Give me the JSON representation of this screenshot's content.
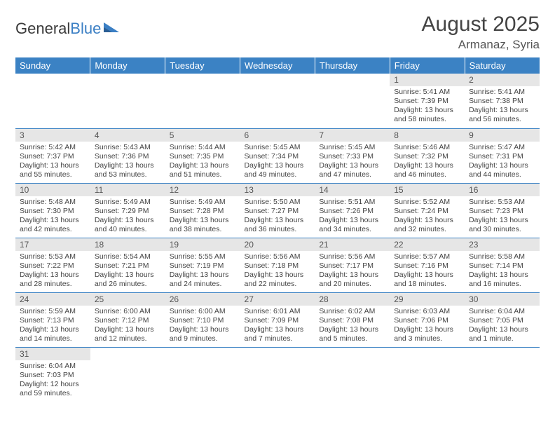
{
  "logo": {
    "part1": "General",
    "part2": "Blue"
  },
  "title": {
    "month": "August 2025",
    "location": "Armanaz, Syria"
  },
  "colors": {
    "header_bg": "#3b82c4",
    "header_text": "#ffffff",
    "daynum_bg": "#e6e6e6",
    "rule": "#3b82c4",
    "text": "#444444",
    "logo_blue": "#3b7fc4"
  },
  "columns": [
    "Sunday",
    "Monday",
    "Tuesday",
    "Wednesday",
    "Thursday",
    "Friday",
    "Saturday"
  ],
  "weeks": [
    [
      {
        "n": "",
        "sr": "",
        "ss": "",
        "dl": ""
      },
      {
        "n": "",
        "sr": "",
        "ss": "",
        "dl": ""
      },
      {
        "n": "",
        "sr": "",
        "ss": "",
        "dl": ""
      },
      {
        "n": "",
        "sr": "",
        "ss": "",
        "dl": ""
      },
      {
        "n": "",
        "sr": "",
        "ss": "",
        "dl": ""
      },
      {
        "n": "1",
        "sr": "Sunrise: 5:41 AM",
        "ss": "Sunset: 7:39 PM",
        "dl": "Daylight: 13 hours and 58 minutes."
      },
      {
        "n": "2",
        "sr": "Sunrise: 5:41 AM",
        "ss": "Sunset: 7:38 PM",
        "dl": "Daylight: 13 hours and 56 minutes."
      }
    ],
    [
      {
        "n": "3",
        "sr": "Sunrise: 5:42 AM",
        "ss": "Sunset: 7:37 PM",
        "dl": "Daylight: 13 hours and 55 minutes."
      },
      {
        "n": "4",
        "sr": "Sunrise: 5:43 AM",
        "ss": "Sunset: 7:36 PM",
        "dl": "Daylight: 13 hours and 53 minutes."
      },
      {
        "n": "5",
        "sr": "Sunrise: 5:44 AM",
        "ss": "Sunset: 7:35 PM",
        "dl": "Daylight: 13 hours and 51 minutes."
      },
      {
        "n": "6",
        "sr": "Sunrise: 5:45 AM",
        "ss": "Sunset: 7:34 PM",
        "dl": "Daylight: 13 hours and 49 minutes."
      },
      {
        "n": "7",
        "sr": "Sunrise: 5:45 AM",
        "ss": "Sunset: 7:33 PM",
        "dl": "Daylight: 13 hours and 47 minutes."
      },
      {
        "n": "8",
        "sr": "Sunrise: 5:46 AM",
        "ss": "Sunset: 7:32 PM",
        "dl": "Daylight: 13 hours and 46 minutes."
      },
      {
        "n": "9",
        "sr": "Sunrise: 5:47 AM",
        "ss": "Sunset: 7:31 PM",
        "dl": "Daylight: 13 hours and 44 minutes."
      }
    ],
    [
      {
        "n": "10",
        "sr": "Sunrise: 5:48 AM",
        "ss": "Sunset: 7:30 PM",
        "dl": "Daylight: 13 hours and 42 minutes."
      },
      {
        "n": "11",
        "sr": "Sunrise: 5:49 AM",
        "ss": "Sunset: 7:29 PM",
        "dl": "Daylight: 13 hours and 40 minutes."
      },
      {
        "n": "12",
        "sr": "Sunrise: 5:49 AM",
        "ss": "Sunset: 7:28 PM",
        "dl": "Daylight: 13 hours and 38 minutes."
      },
      {
        "n": "13",
        "sr": "Sunrise: 5:50 AM",
        "ss": "Sunset: 7:27 PM",
        "dl": "Daylight: 13 hours and 36 minutes."
      },
      {
        "n": "14",
        "sr": "Sunrise: 5:51 AM",
        "ss": "Sunset: 7:26 PM",
        "dl": "Daylight: 13 hours and 34 minutes."
      },
      {
        "n": "15",
        "sr": "Sunrise: 5:52 AM",
        "ss": "Sunset: 7:24 PM",
        "dl": "Daylight: 13 hours and 32 minutes."
      },
      {
        "n": "16",
        "sr": "Sunrise: 5:53 AM",
        "ss": "Sunset: 7:23 PM",
        "dl": "Daylight: 13 hours and 30 minutes."
      }
    ],
    [
      {
        "n": "17",
        "sr": "Sunrise: 5:53 AM",
        "ss": "Sunset: 7:22 PM",
        "dl": "Daylight: 13 hours and 28 minutes."
      },
      {
        "n": "18",
        "sr": "Sunrise: 5:54 AM",
        "ss": "Sunset: 7:21 PM",
        "dl": "Daylight: 13 hours and 26 minutes."
      },
      {
        "n": "19",
        "sr": "Sunrise: 5:55 AM",
        "ss": "Sunset: 7:19 PM",
        "dl": "Daylight: 13 hours and 24 minutes."
      },
      {
        "n": "20",
        "sr": "Sunrise: 5:56 AM",
        "ss": "Sunset: 7:18 PM",
        "dl": "Daylight: 13 hours and 22 minutes."
      },
      {
        "n": "21",
        "sr": "Sunrise: 5:56 AM",
        "ss": "Sunset: 7:17 PM",
        "dl": "Daylight: 13 hours and 20 minutes."
      },
      {
        "n": "22",
        "sr": "Sunrise: 5:57 AM",
        "ss": "Sunset: 7:16 PM",
        "dl": "Daylight: 13 hours and 18 minutes."
      },
      {
        "n": "23",
        "sr": "Sunrise: 5:58 AM",
        "ss": "Sunset: 7:14 PM",
        "dl": "Daylight: 13 hours and 16 minutes."
      }
    ],
    [
      {
        "n": "24",
        "sr": "Sunrise: 5:59 AM",
        "ss": "Sunset: 7:13 PM",
        "dl": "Daylight: 13 hours and 14 minutes."
      },
      {
        "n": "25",
        "sr": "Sunrise: 6:00 AM",
        "ss": "Sunset: 7:12 PM",
        "dl": "Daylight: 13 hours and 12 minutes."
      },
      {
        "n": "26",
        "sr": "Sunrise: 6:00 AM",
        "ss": "Sunset: 7:10 PM",
        "dl": "Daylight: 13 hours and 9 minutes."
      },
      {
        "n": "27",
        "sr": "Sunrise: 6:01 AM",
        "ss": "Sunset: 7:09 PM",
        "dl": "Daylight: 13 hours and 7 minutes."
      },
      {
        "n": "28",
        "sr": "Sunrise: 6:02 AM",
        "ss": "Sunset: 7:08 PM",
        "dl": "Daylight: 13 hours and 5 minutes."
      },
      {
        "n": "29",
        "sr": "Sunrise: 6:03 AM",
        "ss": "Sunset: 7:06 PM",
        "dl": "Daylight: 13 hours and 3 minutes."
      },
      {
        "n": "30",
        "sr": "Sunrise: 6:04 AM",
        "ss": "Sunset: 7:05 PM",
        "dl": "Daylight: 13 hours and 1 minute."
      }
    ],
    [
      {
        "n": "31",
        "sr": "Sunrise: 6:04 AM",
        "ss": "Sunset: 7:03 PM",
        "dl": "Daylight: 12 hours and 59 minutes."
      },
      {
        "n": "",
        "sr": "",
        "ss": "",
        "dl": ""
      },
      {
        "n": "",
        "sr": "",
        "ss": "",
        "dl": ""
      },
      {
        "n": "",
        "sr": "",
        "ss": "",
        "dl": ""
      },
      {
        "n": "",
        "sr": "",
        "ss": "",
        "dl": ""
      },
      {
        "n": "",
        "sr": "",
        "ss": "",
        "dl": ""
      },
      {
        "n": "",
        "sr": "",
        "ss": "",
        "dl": ""
      }
    ]
  ]
}
